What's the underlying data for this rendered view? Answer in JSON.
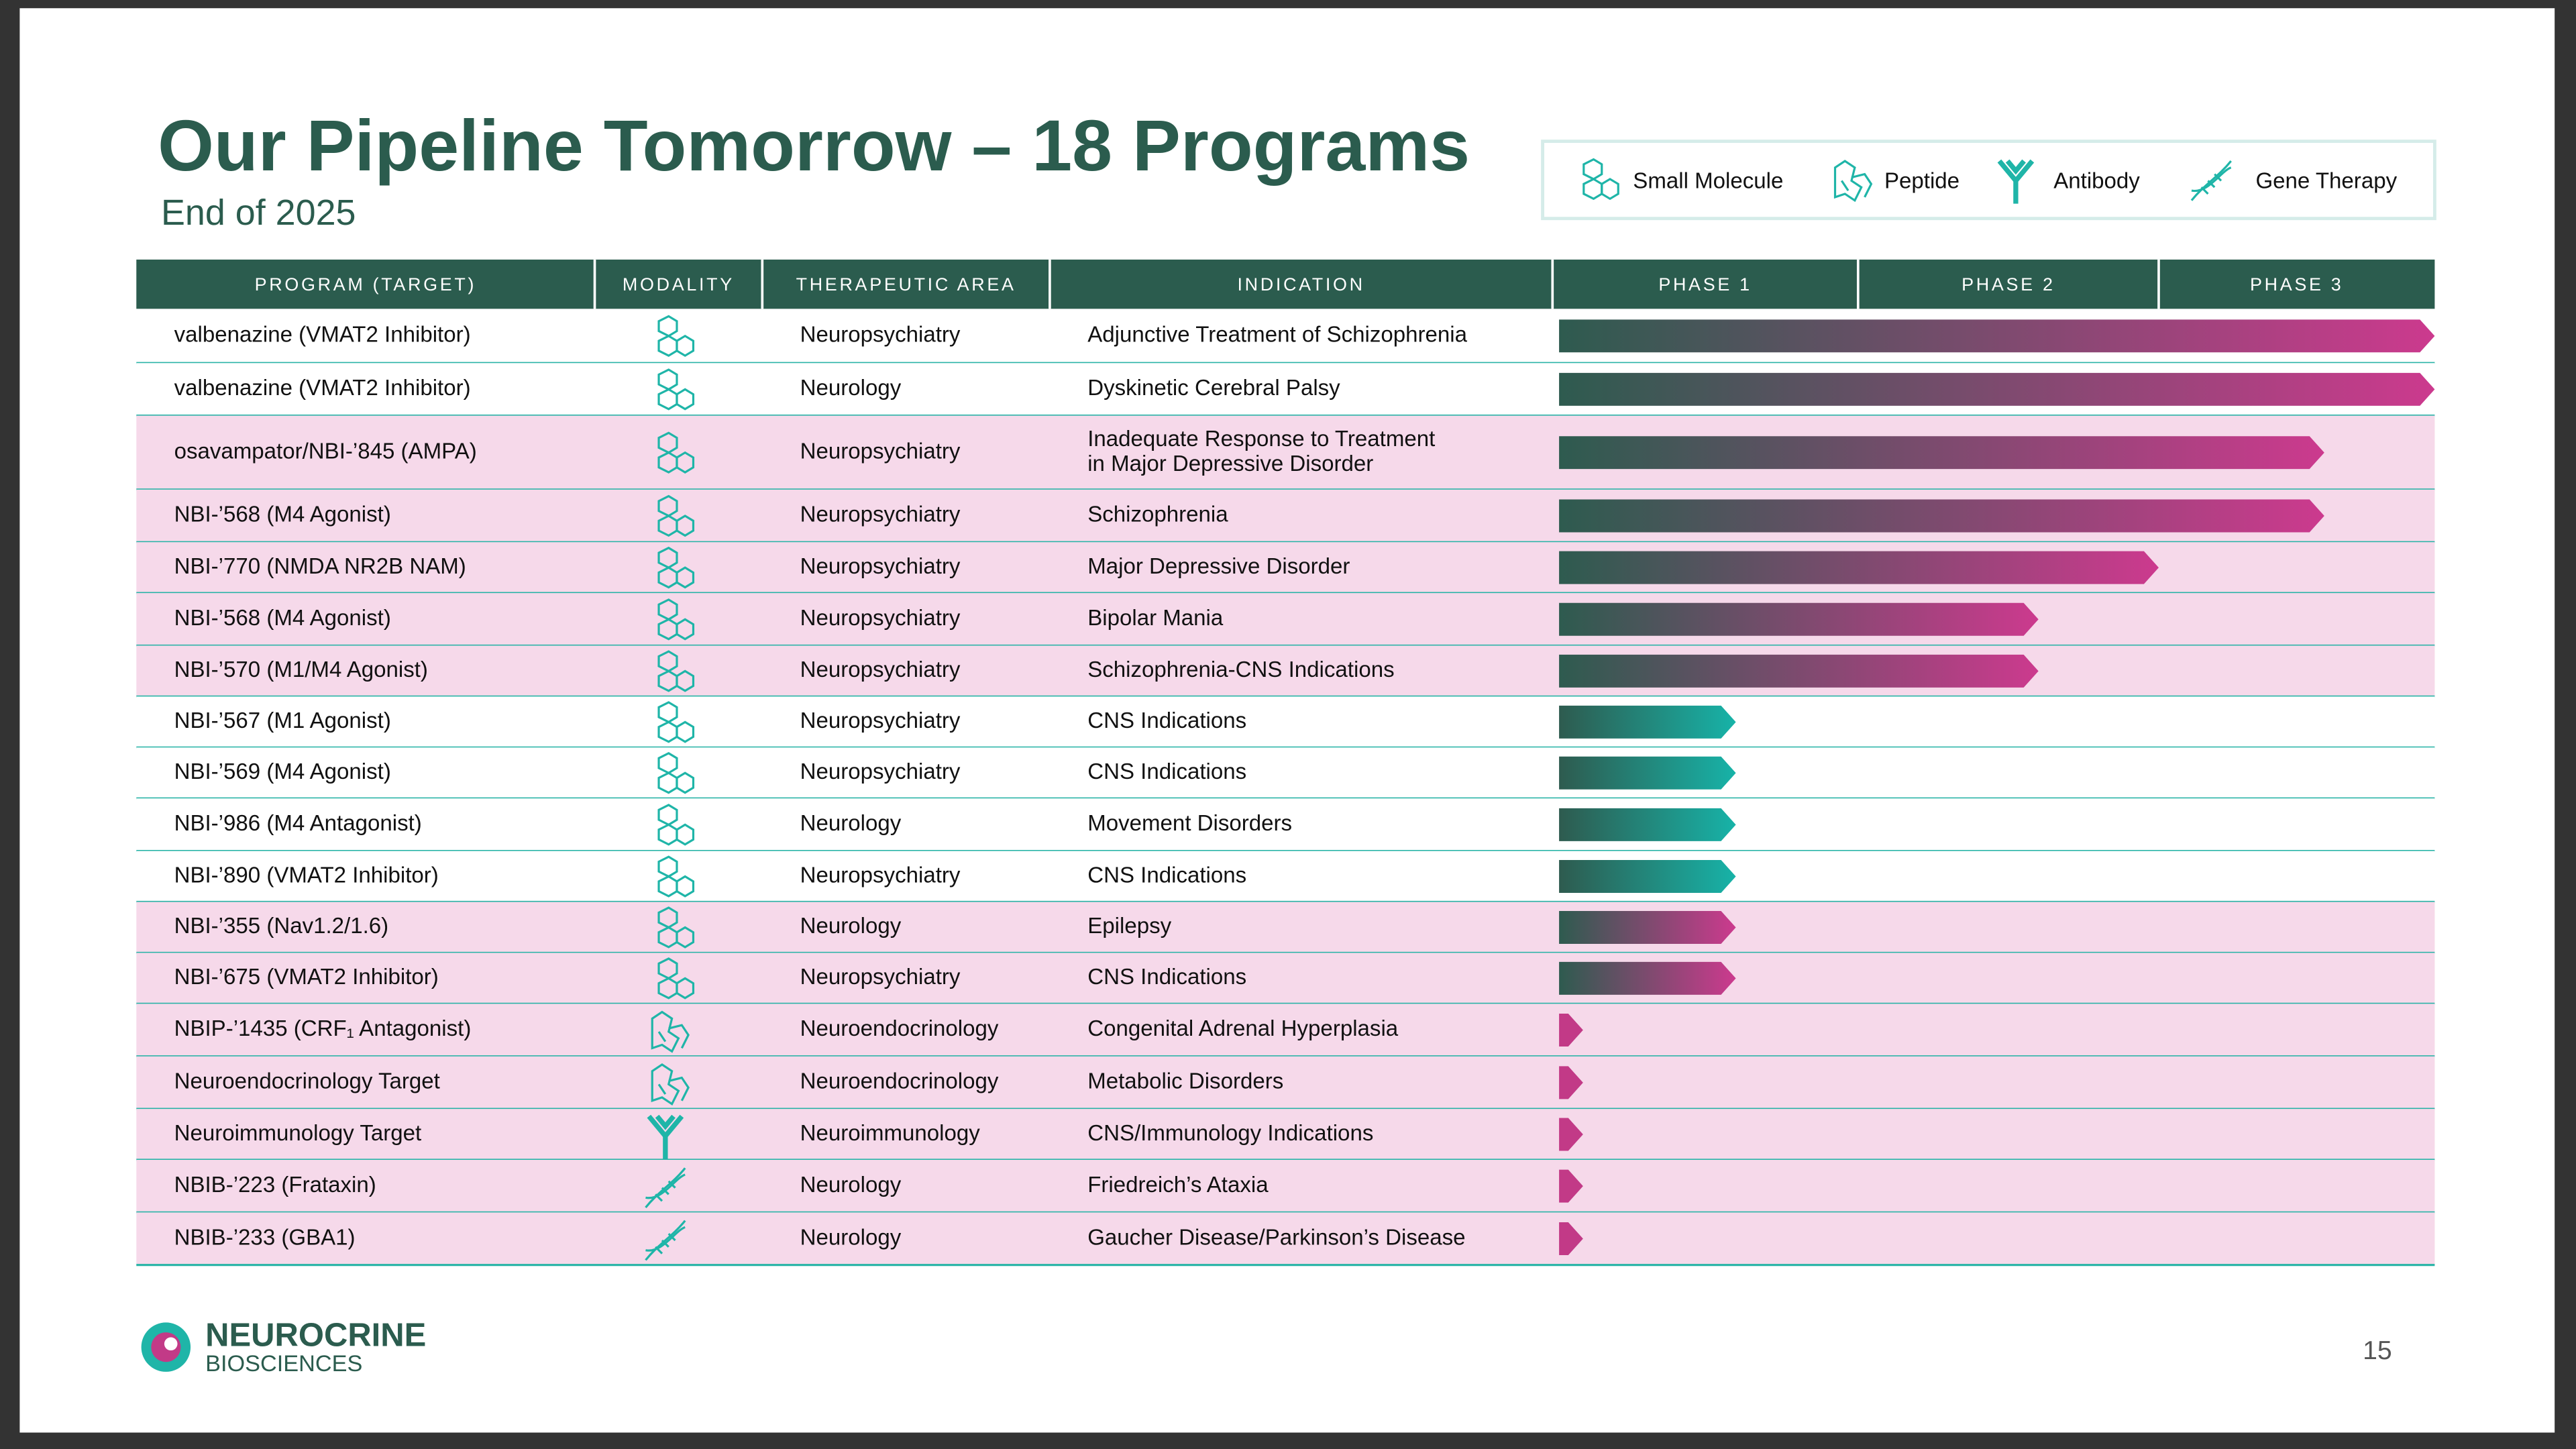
{
  "header": {
    "title": "Our Pipeline Tomorrow – 18 Programs",
    "subtitle": "End of 2025"
  },
  "legend": [
    "Small Molecule",
    "Peptide",
    "Antibody",
    "Gene Therapy"
  ],
  "table": {
    "columns": [
      "PROGRAM (TARGET)",
      "MODALITY",
      "THERAPEUTIC AREA",
      "INDICATION",
      "PHASE 1",
      "PHASE 2",
      "PHASE 3"
    ],
    "rows": [
      {
        "program": "valbenazine (VMAT2 Inhibitor)",
        "modality": 0,
        "area": "Neuropsychiatry",
        "indication": [
          "Adjunctive Treatment of Schizophrenia"
        ],
        "progress": 3.0,
        "colors": [
          "#2e5b4f",
          "#cc3a8e"
        ],
        "background": "#ffffff"
      },
      {
        "program": "valbenazine (VMAT2 Inhibitor)",
        "modality": 0,
        "area": "Neurology",
        "indication": [
          "Dyskinetic Cerebral Palsy"
        ],
        "progress": 3.0,
        "colors": [
          "#2e5b4f",
          "#cc3a8e"
        ],
        "background": "#ffffff"
      },
      {
        "program": "osavampator/NBI-’845 (AMPA)",
        "modality": 0,
        "area": "Neuropsychiatry",
        "indication": [
          "Inadequate Response to Treatment",
          "in Major Depressive Disorder"
        ],
        "progress": 2.6,
        "colors": [
          "#2e5b4f",
          "#cc3a8e"
        ],
        "background": "#f6d9ea"
      },
      {
        "program": "NBI-’568 (M4 Agonist)",
        "modality": 0,
        "area": "Neuropsychiatry",
        "indication": [
          "Schizophrenia"
        ],
        "progress": 2.6,
        "colors": [
          "#2e5b4f",
          "#cc3a8e"
        ],
        "background": "#f6d9ea"
      },
      {
        "program": "NBI-’770 (NMDA NR2B NAM)",
        "modality": 0,
        "area": "Neuropsychiatry",
        "indication": [
          "Major Depressive Disorder"
        ],
        "progress": 2.0,
        "colors": [
          "#2e5b4f",
          "#cc3a8e"
        ],
        "background": "#f6d9ea"
      },
      {
        "program": "NBI-’568 (M4 Agonist)",
        "modality": 0,
        "area": "Neuropsychiatry",
        "indication": [
          "Bipolar Mania"
        ],
        "progress": 1.6,
        "colors": [
          "#2e5b4f",
          "#cc3a8e"
        ],
        "background": "#f6d9ea"
      },
      {
        "program": "NBI-’570 (M1/M4 Agonist)",
        "modality": 0,
        "area": "Neuropsychiatry",
        "indication": [
          "Schizophrenia-CNS Indications"
        ],
        "progress": 1.6,
        "colors": [
          "#2e5b4f",
          "#cc3a8e"
        ],
        "background": "#f6d9ea"
      },
      {
        "program": "NBI-’567 (M1 Agonist)",
        "modality": 0,
        "area": "Neuropsychiatry",
        "indication": [
          "CNS Indications"
        ],
        "progress": 0.6,
        "colors": [
          "#2e5b4f",
          "#17b3a8"
        ],
        "background": "#ffffff"
      },
      {
        "program": "NBI-’569 (M4 Agonist)",
        "modality": 0,
        "area": "Neuropsychiatry",
        "indication": [
          "CNS Indications"
        ],
        "progress": 0.6,
        "colors": [
          "#2e5b4f",
          "#17b3a8"
        ],
        "background": "#ffffff"
      },
      {
        "program": "NBI-’986 (M4 Antagonist)",
        "modality": 0,
        "area": "Neurology",
        "indication": [
          "Movement Disorders"
        ],
        "progress": 0.6,
        "colors": [
          "#2e5b4f",
          "#17b3a8"
        ],
        "background": "#ffffff"
      },
      {
        "program": "NBI-’890 (VMAT2 Inhibitor)",
        "modality": 0,
        "area": "Neuropsychiatry",
        "indication": [
          "CNS Indications"
        ],
        "progress": 0.6,
        "colors": [
          "#2e5b4f",
          "#17b3a8"
        ],
        "background": "#ffffff"
      },
      {
        "program": "NBI-’355 (Nav1.2/1.6)",
        "modality": 0,
        "area": "Neurology",
        "indication": [
          "Epilepsy"
        ],
        "progress": 0.6,
        "colors": [
          "#2e5b4f",
          "#cc3a8e"
        ],
        "background": "#f6d9ea"
      },
      {
        "program": "NBI-’675 (VMAT2 Inhibitor)",
        "modality": 0,
        "area": "Neuropsychiatry",
        "indication": [
          "CNS Indications"
        ],
        "progress": 0.6,
        "colors": [
          "#2e5b4f",
          "#cc3a8e"
        ],
        "background": "#f6d9ea"
      },
      {
        "program": "NBIP-’1435 (CRF₁ Antagonist)",
        "modality": 1,
        "area": "Neuroendocrinology",
        "indication": [
          "Congenital Adrenal Hyperplasia"
        ],
        "progress": 0.1,
        "colors": [
          "#c23a87",
          "#c23a87"
        ],
        "background": "#f6d9ea"
      },
      {
        "program": "Neuroendocrinology Target",
        "modality": 1,
        "area": "Neuroendocrinology",
        "indication": [
          "Metabolic Disorders"
        ],
        "progress": 0.1,
        "colors": [
          "#c23a87",
          "#c23a87"
        ],
        "background": "#f6d9ea"
      },
      {
        "program": "Neuroimmunology Target",
        "modality": 2,
        "area": "Neuroimmunology",
        "indication": [
          "CNS/Immunology Indications"
        ],
        "progress": 0.1,
        "colors": [
          "#c23a87",
          "#c23a87"
        ],
        "background": "#f6d9ea"
      },
      {
        "program": "NBIB-’223 (Frataxin)",
        "modality": 3,
        "area": "Neurology",
        "indication": [
          "Friedreich’s Ataxia"
        ],
        "progress": 0.1,
        "colors": [
          "#c23a87",
          "#c23a87"
        ],
        "background": "#f6d9ea"
      },
      {
        "program": "NBIB-’233 (GBA1)",
        "modality": 3,
        "area": "Neurology",
        "indication": [
          "Gaucher Disease/Parkinson’s Disease"
        ],
        "progress": 0.1,
        "colors": [
          "#c23a87",
          "#c23a87"
        ],
        "background": "#f6d9ea"
      }
    ]
  },
  "footer": {
    "logo_name": "NEUROCRINE",
    "logo_sub": "BIOSCIENCES",
    "page": "15"
  }
}
